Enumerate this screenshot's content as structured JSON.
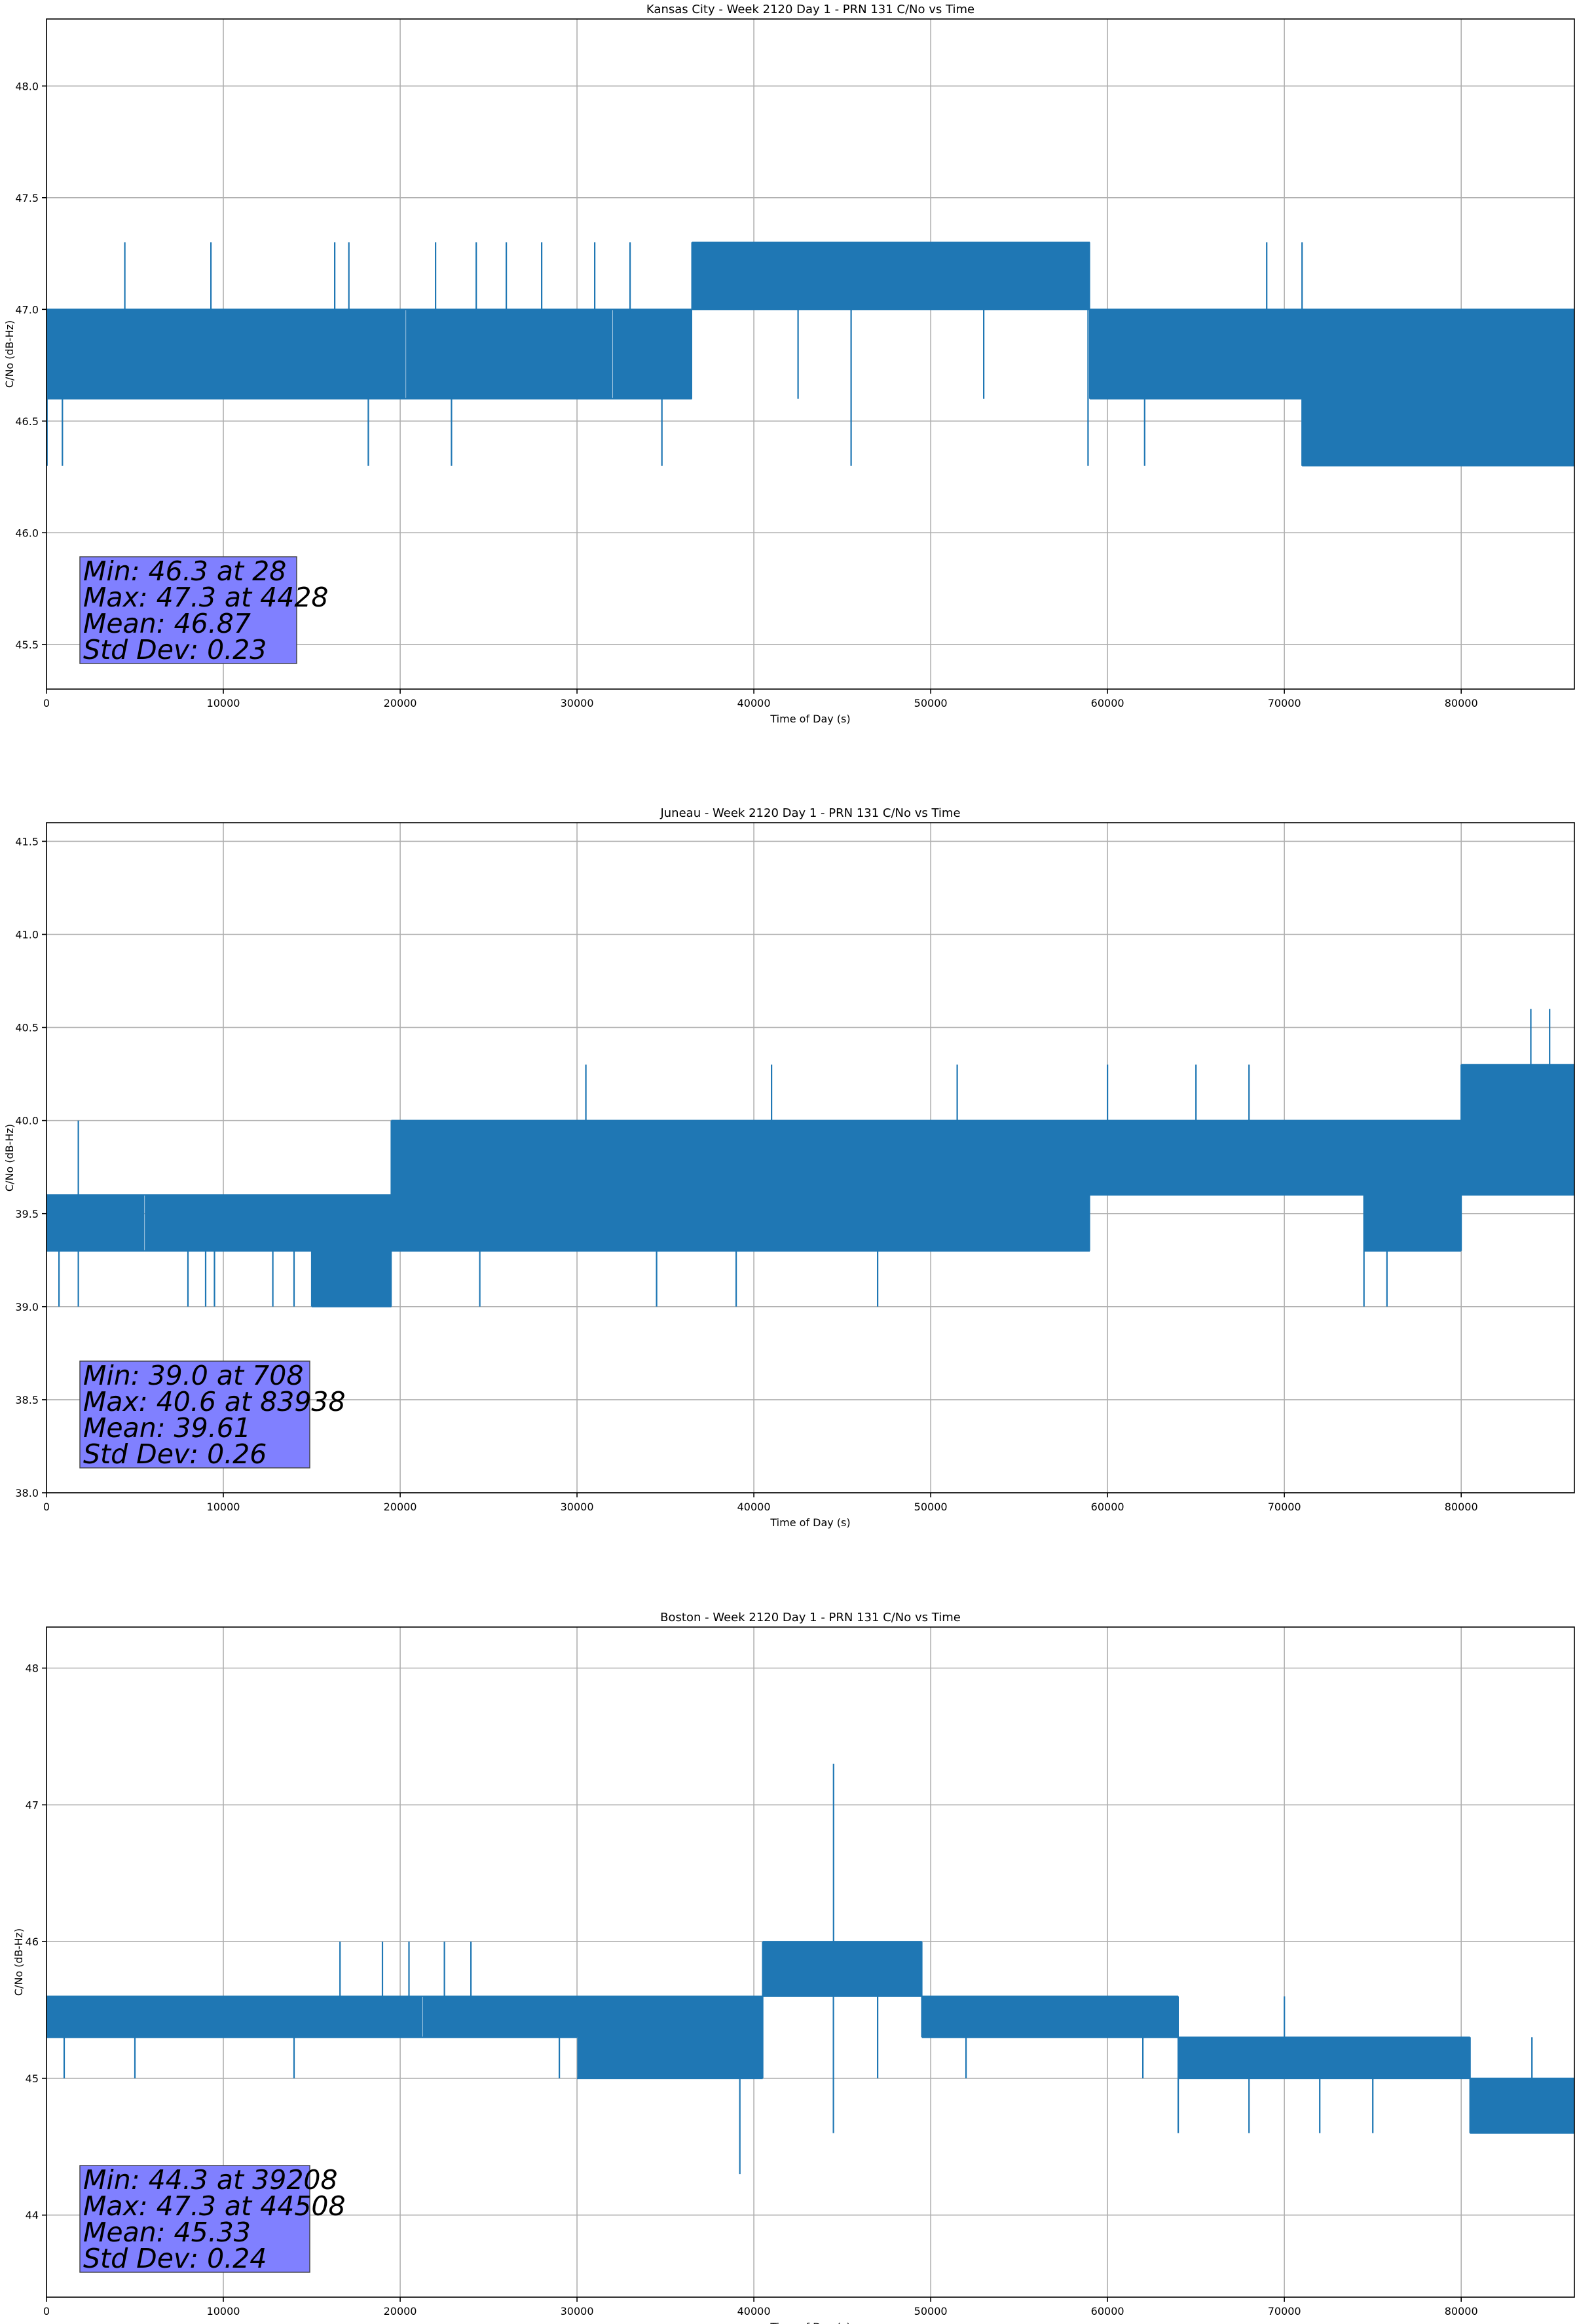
{
  "chart_data": [
    {
      "type": "line",
      "title": "Kansas City - Week 2120 Day 1 - PRN 131 C/No vs Time",
      "xlabel": "Time of Day (s)",
      "ylabel": "C/No (dB-Hz)",
      "xlim": [
        0,
        86400
      ],
      "ylim": [
        45.3,
        48.3
      ],
      "xticks": [
        0,
        10000,
        20000,
        30000,
        40000,
        50000,
        60000,
        70000,
        80000
      ],
      "yticks": [
        45.5,
        46.0,
        46.5,
        47.0,
        47.5,
        48.0
      ],
      "ytick_labels": [
        "45.5",
        "46.0",
        "46.5",
        "47.0",
        "47.5",
        "48.0"
      ],
      "grid": true,
      "series_color": "#1f77b4",
      "box_color": "#8080ff",
      "stats": [
        "Min: 46.3 at 28",
        "Max: 47.3 at 4428",
        "Mean: 46.87",
        "Std Dev: 0.23"
      ],
      "segments": [
        {
          "x0": 0,
          "x1": 36500,
          "lo": 46.6,
          "hi": 47.0,
          "den": 0.08
        },
        {
          "x0": 36500,
          "x1": 59000,
          "lo": 47.0,
          "hi": 47.3,
          "den": 0.08
        },
        {
          "x0": 59000,
          "x1": 71000,
          "lo": 46.6,
          "hi": 47.0,
          "den": 0.08
        },
        {
          "x0": 71000,
          "x1": 86400,
          "lo": 46.3,
          "hi": 47.0,
          "den": 0.06
        }
      ],
      "spikes": [
        [
          28,
          46.3
        ],
        [
          900,
          46.3
        ],
        [
          4428,
          47.3
        ],
        [
          9300,
          47.3
        ],
        [
          16300,
          47.3
        ],
        [
          17100,
          47.3
        ],
        [
          18200,
          46.3
        ],
        [
          22000,
          47.3
        ],
        [
          22900,
          46.3
        ],
        [
          24300,
          47.3
        ],
        [
          26000,
          47.3
        ],
        [
          28000,
          47.3
        ],
        [
          31000,
          47.3
        ],
        [
          33000,
          47.3
        ],
        [
          34800,
          46.3
        ],
        [
          42500,
          46.6
        ],
        [
          45500,
          46.3
        ],
        [
          53000,
          46.6
        ],
        [
          58900,
          46.3
        ],
        [
          62100,
          46.3
        ],
        [
          69000,
          47.3
        ],
        [
          71000,
          47.3
        ],
        [
          73000,
          46.3
        ],
        [
          75500,
          46.3
        ],
        [
          79000,
          46.3
        ],
        [
          83000,
          46.3
        ]
      ]
    },
    {
      "type": "line",
      "title": "Juneau - Week 2120 Day 1 - PRN 131 C/No vs Time",
      "xlabel": "Time of Day (s)",
      "ylabel": "C/No (dB-Hz)",
      "xlim": [
        0,
        86400
      ],
      "ylim": [
        38.0,
        41.6
      ],
      "xticks": [
        0,
        10000,
        20000,
        30000,
        40000,
        50000,
        60000,
        70000,
        80000
      ],
      "yticks": [
        38.0,
        38.5,
        39.0,
        39.5,
        40.0,
        40.5,
        41.0,
        41.5
      ],
      "ytick_labels": [
        "38.0",
        "38.5",
        "39.0",
        "39.5",
        "40.0",
        "40.5",
        "41.0",
        "41.5"
      ],
      "grid": true,
      "series_color": "#1f77b4",
      "box_color": "#8080ff",
      "stats": [
        "Min: 39.0 at 708",
        "Max: 40.6 at 83938",
        "Mean: 39.61",
        "Std Dev: 0.26"
      ],
      "segments": [
        {
          "x0": 0,
          "x1": 7500,
          "lo": 39.3,
          "hi": 39.6,
          "den": 0.08
        },
        {
          "x0": 7500,
          "x1": 15000,
          "lo": 39.3,
          "hi": 39.6,
          "den": 0.07
        },
        {
          "x0": 15000,
          "x1": 19500,
          "lo": 39.0,
          "hi": 39.6,
          "den": 0.06
        },
        {
          "x0": 19500,
          "x1": 47000,
          "lo": 39.3,
          "hi": 40.0,
          "den": 0.07
        },
        {
          "x0": 47000,
          "x1": 59000,
          "lo": 39.3,
          "hi": 40.0,
          "den": 0.06
        },
        {
          "x0": 59000,
          "x1": 74500,
          "lo": 39.6,
          "hi": 40.0,
          "den": 0.08
        },
        {
          "x0": 74500,
          "x1": 80000,
          "lo": 39.3,
          "hi": 40.0,
          "den": 0.06
        },
        {
          "x0": 80000,
          "x1": 86400,
          "lo": 39.6,
          "hi": 40.3,
          "den": 0.08
        }
      ],
      "spikes": [
        [
          708,
          39.0
        ],
        [
          1800,
          39.0
        ],
        [
          1800,
          40.0
        ],
        [
          8000,
          39.0
        ],
        [
          9000,
          39.0
        ],
        [
          9500,
          39.0
        ],
        [
          12800,
          39.0
        ],
        [
          14000,
          39.0
        ],
        [
          24500,
          39.0
        ],
        [
          30500,
          40.3
        ],
        [
          34500,
          39.0
        ],
        [
          39000,
          39.0
        ],
        [
          41000,
          40.3
        ],
        [
          47000,
          39.0
        ],
        [
          51500,
          40.3
        ],
        [
          60000,
          40.3
        ],
        [
          65000,
          40.3
        ],
        [
          68000,
          40.3
        ],
        [
          74500,
          39.0
        ],
        [
          75800,
          39.0
        ],
        [
          83938,
          40.6
        ],
        [
          85000,
          40.6
        ]
      ]
    },
    {
      "type": "line",
      "title": "Boston - Week 2120 Day 1 - PRN 131 C/No vs Time",
      "xlabel": "Time of Day (s)",
      "ylabel": "C/No (dB-Hz)",
      "xlim": [
        0,
        86400
      ],
      "ylim": [
        43.4,
        48.3
      ],
      "xticks": [
        0,
        10000,
        20000,
        30000,
        40000,
        50000,
        60000,
        70000,
        80000
      ],
      "yticks": [
        44,
        45,
        46,
        47,
        48
      ],
      "ytick_labels": [
        "44",
        "45",
        "46",
        "47",
        "48"
      ],
      "grid": true,
      "series_color": "#1f77b4",
      "box_color": "#8080ff",
      "stats": [
        "Min: 44.3 at 39208",
        "Max: 47.3 at 44508",
        "Mean: 45.33",
        "Std Dev: 0.24"
      ],
      "segments": [
        {
          "x0": 0,
          "x1": 30000,
          "lo": 45.3,
          "hi": 45.6,
          "den": 0.09
        },
        {
          "x0": 30000,
          "x1": 40500,
          "lo": 45.0,
          "hi": 45.6,
          "den": 0.07
        },
        {
          "x0": 40500,
          "x1": 49500,
          "lo": 45.6,
          "hi": 46.0,
          "den": 0.08
        },
        {
          "x0": 49500,
          "x1": 64000,
          "lo": 45.3,
          "hi": 45.6,
          "den": 0.09
        },
        {
          "x0": 64000,
          "x1": 80500,
          "lo": 45.0,
          "hi": 45.3,
          "den": 0.09
        },
        {
          "x0": 80500,
          "x1": 86400,
          "lo": 44.6,
          "hi": 45.0,
          "den": 0.08
        }
      ],
      "spikes": [
        [
          1000,
          45.0
        ],
        [
          5000,
          45.0
        ],
        [
          14000,
          45.0
        ],
        [
          16600,
          46.0
        ],
        [
          19000,
          46.0
        ],
        [
          20500,
          46.0
        ],
        [
          22500,
          46.0
        ],
        [
          24000,
          46.0
        ],
        [
          29000,
          45.0
        ],
        [
          39208,
          44.3
        ],
        [
          44500,
          44.6
        ],
        [
          44508,
          47.3
        ],
        [
          47000,
          45.0
        ],
        [
          52000,
          45.0
        ],
        [
          62000,
          45.0
        ],
        [
          64000,
          44.6
        ],
        [
          68000,
          44.6
        ],
        [
          70000,
          45.6
        ],
        [
          72000,
          44.6
        ],
        [
          75000,
          44.6
        ],
        [
          80500,
          45.3
        ],
        [
          84000,
          45.3
        ]
      ]
    }
  ]
}
